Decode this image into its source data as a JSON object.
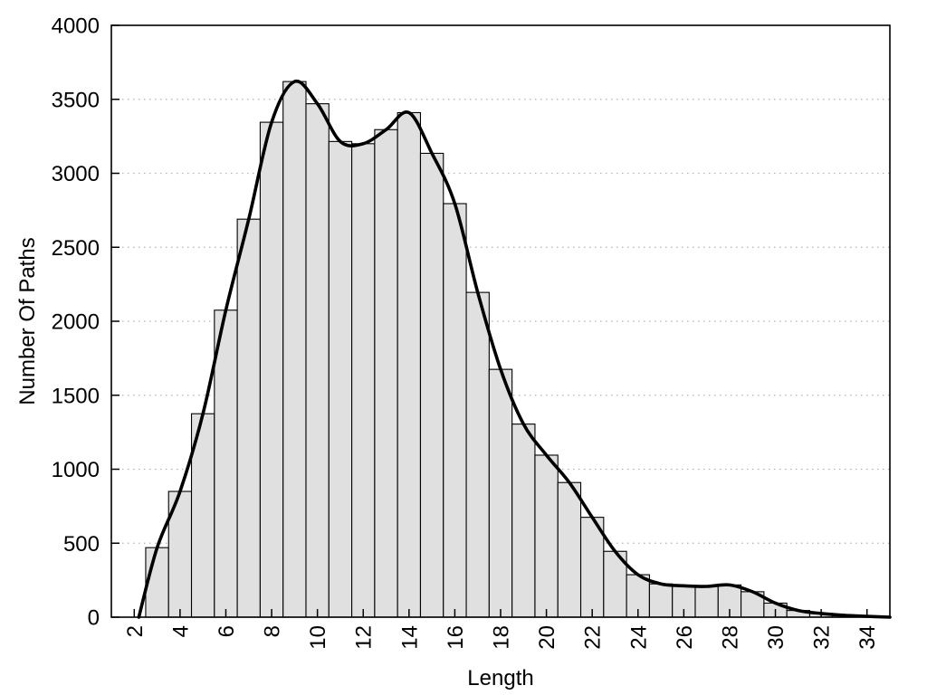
{
  "chart_data": {
    "type": "bar",
    "title": "",
    "xlabel": "Length",
    "ylabel": "Number Of Paths",
    "bin_width": 1,
    "bin_centers": [
      3,
      4,
      5,
      6,
      7,
      8,
      9,
      10,
      11,
      12,
      13,
      14,
      15,
      16,
      17,
      18,
      19,
      20,
      21,
      22,
      23,
      24,
      25,
      26,
      27,
      28,
      29,
      30,
      31,
      32,
      33,
      34
    ],
    "values": [
      470,
      850,
      1375,
      2075,
      2690,
      3345,
      3620,
      3470,
      3215,
      3200,
      3295,
      3410,
      3135,
      2795,
      2195,
      1675,
      1305,
      1095,
      910,
      675,
      445,
      287,
      225,
      212,
      208,
      218,
      172,
      95,
      45,
      25,
      13,
      6
    ],
    "overlay_line": {
      "type": "line",
      "smooth": true,
      "follows_bins": true,
      "start_point": [
        2.2,
        0
      ],
      "end_point": [
        35,
        0
      ]
    },
    "xlim": [
      1,
      35
    ],
    "ylim": [
      0,
      4000
    ],
    "xticks": [
      2,
      4,
      6,
      8,
      10,
      12,
      14,
      16,
      18,
      20,
      22,
      24,
      26,
      28,
      30,
      32,
      34
    ],
    "yticks": [
      0,
      500,
      1000,
      1500,
      2000,
      2500,
      3000,
      3500,
      4000
    ],
    "grid": {
      "horizontal_dotted_at": [
        500,
        1000,
        1500,
        2000,
        2500,
        3000,
        3500
      ]
    },
    "legend": "none",
    "colors": {
      "bar_fill": "#e0e0e0",
      "bar_border": "#000000",
      "line": "#000000",
      "grid": "#b3b3b3",
      "background": "#ffffff",
      "text": "#000000"
    }
  }
}
